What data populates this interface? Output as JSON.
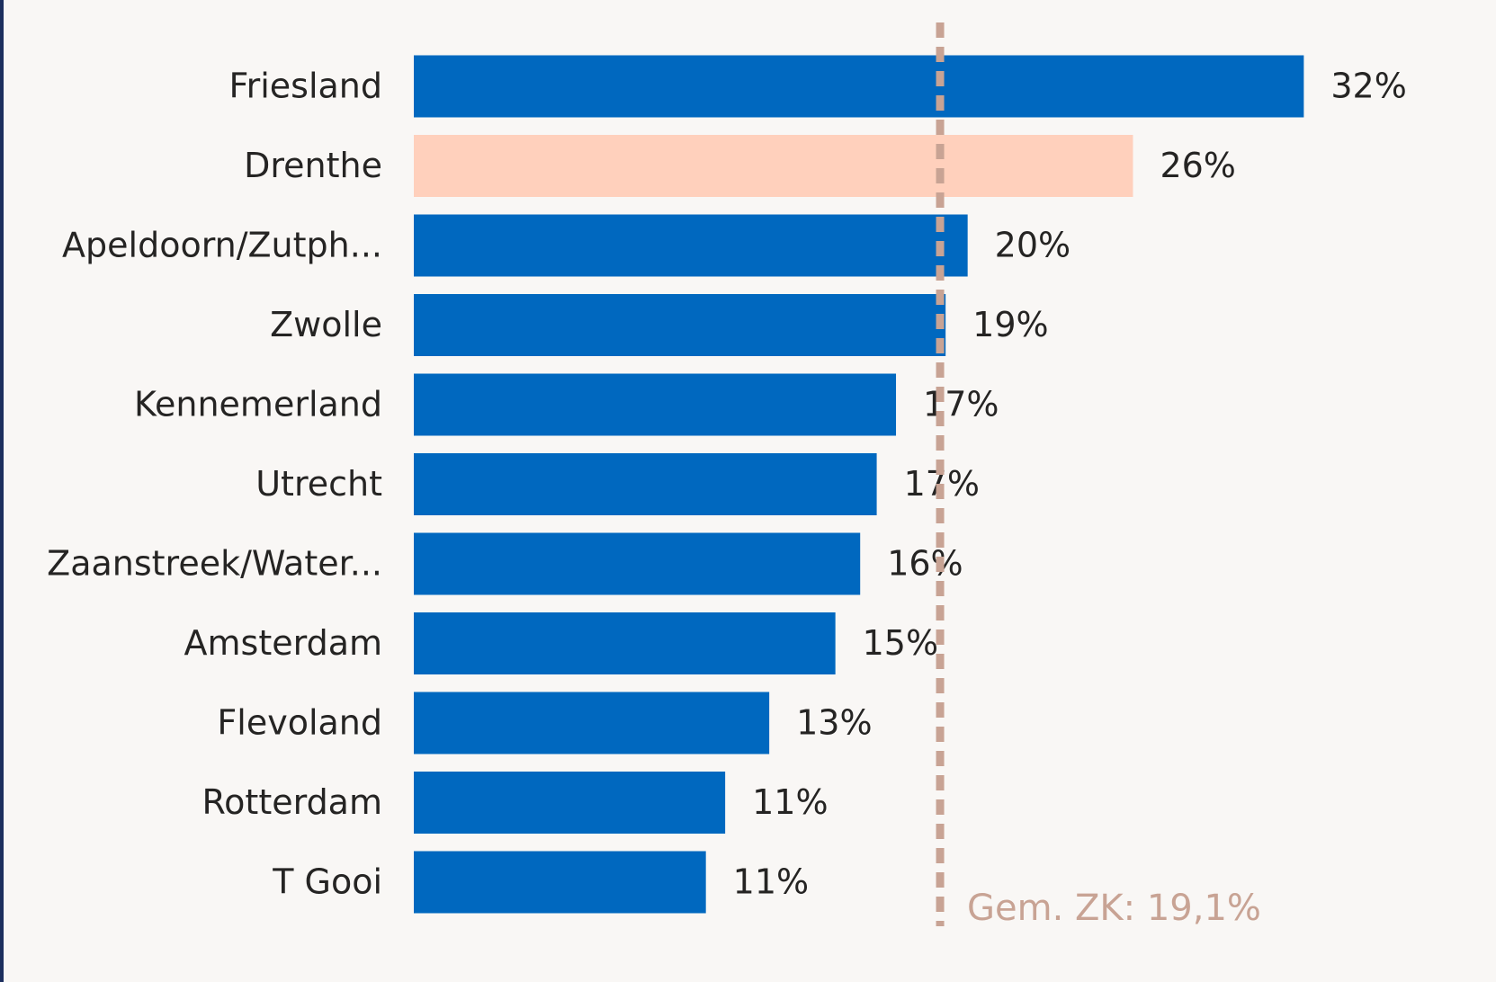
{
  "chart_data": {
    "type": "hbar",
    "categories": [
      "Friesland",
      "Drenthe",
      "Apeldoorn/Zutph...",
      "Zwolle",
      "Kennemerland",
      "Utrecht",
      "Zaanstreek/Water...",
      "Amsterdam",
      "Flevoland",
      "Rotterdam",
      "T Gooi"
    ],
    "values": [
      32.3,
      26.1,
      20.1,
      19.3,
      17.5,
      16.8,
      16.2,
      15.3,
      12.9,
      11.3,
      10.6
    ],
    "value_labels": [
      "32%",
      "26%",
      "20%",
      "19%",
      "17%",
      "17%",
      "16%",
      "15%",
      "13%",
      "11%",
      "11%"
    ],
    "colors": [
      "#0068bf",
      "#ffd0bc",
      "#0068bf",
      "#0068bf",
      "#0068bf",
      "#0068bf",
      "#0068bf",
      "#0068bf",
      "#0068bf",
      "#0068bf",
      "#0068bf"
    ],
    "xlim": [
      0,
      35
    ],
    "reference_line": {
      "value": 19.1,
      "label": "Gem. ZK: 19,1%",
      "color": "#c8a394"
    }
  }
}
